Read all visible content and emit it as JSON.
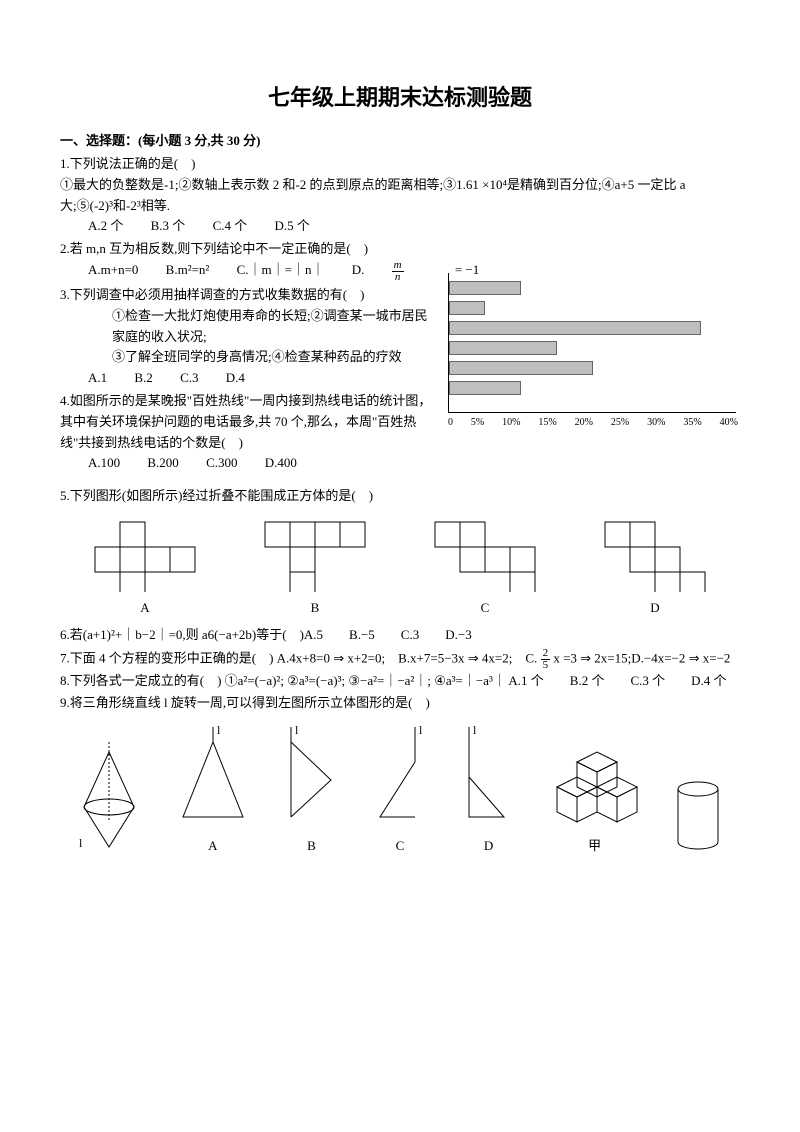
{
  "title": "七年级上期期末达标测验题",
  "section1": {
    "header": "一、选择题：(每小题 3 分,共 30 分)",
    "q1": {
      "stem": "1.下列说法正确的是(　)",
      "body": "①最大的负整数是-1;②数轴上表示数 2 和-2 的点到原点的距离相等;③1.61 ×10⁴是精确到百分位;④a+5 一定比 a 大;⑤(-2)³和-2³相等.",
      "opts": {
        "a": "A.2 个",
        "b": "B.3 个",
        "c": "C.4 个",
        "d": "D.5 个"
      }
    },
    "q2": {
      "stem": "2.若 m,n 互为相反数,则下列结论中不一定正确的是(　)",
      "opts": {
        "a": "A.m+n=0",
        "b": "B.m²=n²",
        "c": "C.｜m｜=｜n｜",
        "d_pre": "D.",
        "d_eq": "= −1"
      }
    },
    "q3": {
      "stem": "3.下列调查中必须用抽样调查的方式收集数据的有(　)",
      "l1": "①检查一大批灯炮使用寿命的长短;②调查某一城市居民家庭的收入状况;",
      "l2": "③了解全班同学的身高情况;④检查某种药品的疗效",
      "opts": {
        "a": "A.1",
        "b": "B.2",
        "c": "C.3",
        "d": "D.4"
      }
    },
    "q4": {
      "stem": "4.如图所示的是某晚报\"百姓热线\"一周内接到热线电话的统计图，其中有关环境保护问题的电话最多,共 70 个,那么，本周\"百姓热线\"共接到热线电话的个数是(　)",
      "opts": {
        "a": "A.100",
        "b": "B.200",
        "c": "C.300",
        "d": "D.400"
      }
    },
    "q5": {
      "stem": "5.下列图形(如图所示)经过折叠不能围成正方体的是(　)",
      "labels": {
        "a": "A",
        "b": "B",
        "c": "C",
        "d": "D"
      }
    },
    "q6": {
      "stem": "6.若(a+1)²+｜b−2｜=0,则 a6(−a+2b)等于(　)A.5　　B.−5　　C.3　　D.−3"
    },
    "q7": {
      "stem_pre": "7.下面 4 个方程的变形中正确的是(　) A.4x+8=0 ⇒ x+2=0;　B.x+7=5−3x ⇒ 4x=2;　C.",
      "stem_post": "x =3 ⇒ 2x=15;D.−4x=−2 ⇒ x=−2",
      "q8_inline": "8.下列各式一定成立的有(　) ①a²=(−a)²; ②a³=(−a)³; ③−a²=｜−a²｜; ④a³=｜−a³｜ A.1 个　　B.2 个　　C.3 个　　D.4 个"
    },
    "q9": {
      "stem": "9.将三角形绕直线 l 旋转一周,可以得到左图所示立体图形的是(　)",
      "labels": {
        "a": "A",
        "b": "B",
        "c": "C",
        "d": "D",
        "jia": "甲"
      }
    }
  },
  "chart": {
    "xlabels": [
      "0",
      "5%",
      "10%",
      "15%",
      "20%",
      "25%",
      "30%",
      "35%",
      "40%"
    ],
    "bars": [
      {
        "value_pct": 10
      },
      {
        "value_pct": 5
      },
      {
        "value_pct": 35
      },
      {
        "value_pct": 15
      },
      {
        "value_pct": 20
      },
      {
        "value_pct": 10
      }
    ],
    "bar_color": "#bfbfbf",
    "axis_max": 40
  }
}
